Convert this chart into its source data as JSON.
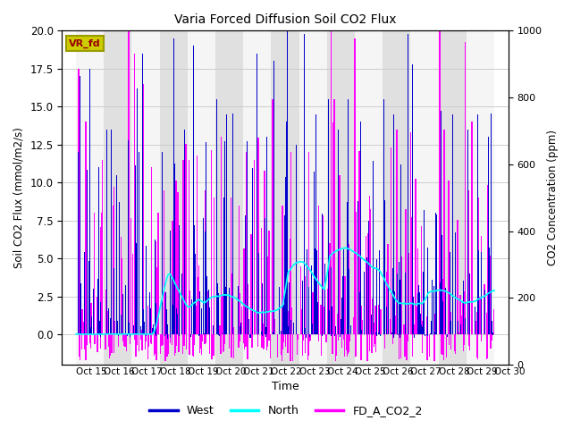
{
  "title": "Varia Forced Diffusion Soil CO2 Flux",
  "xlabel": "Time",
  "ylabel_left": "Soil CO2 Flux (mmol/m2/s)",
  "ylabel_right": "CO2 Concentration (ppm)",
  "xlim": [
    14.5,
    30.5
  ],
  "ylim_left": [
    -2,
    20
  ],
  "ylim_right": [
    0,
    1000
  ],
  "xtick_labels": [
    "Oct 15",
    "Oct 16",
    "Oct 17",
    "Oct 18",
    "Oct 19",
    "Oct 20",
    "Oct 21",
    "Oct 22",
    "Oct 23",
    "Oct 24",
    "Oct 25",
    "Oct 26",
    "Oct 27",
    "Oct 28",
    "Oct 29",
    "Oct 30"
  ],
  "xtick_positions": [
    15,
    16,
    17,
    18,
    19,
    20,
    21,
    22,
    23,
    24,
    25,
    26,
    27,
    28,
    29,
    30
  ],
  "color_west": "#0000CC",
  "color_north": "#00FFFF",
  "color_magenta": "#FF00FF",
  "color_band_gray": "#E0E0E0",
  "color_band_white": "#F5F5F5",
  "legend_box_facecolor": "#CCCC00",
  "legend_box_text": "VR_fd",
  "legend_box_edgecolor": "#999900",
  "background_color": "#FFFFFF",
  "grid_color": "#CCCCCC",
  "figsize": [
    6.4,
    4.8
  ],
  "dpi": 100
}
